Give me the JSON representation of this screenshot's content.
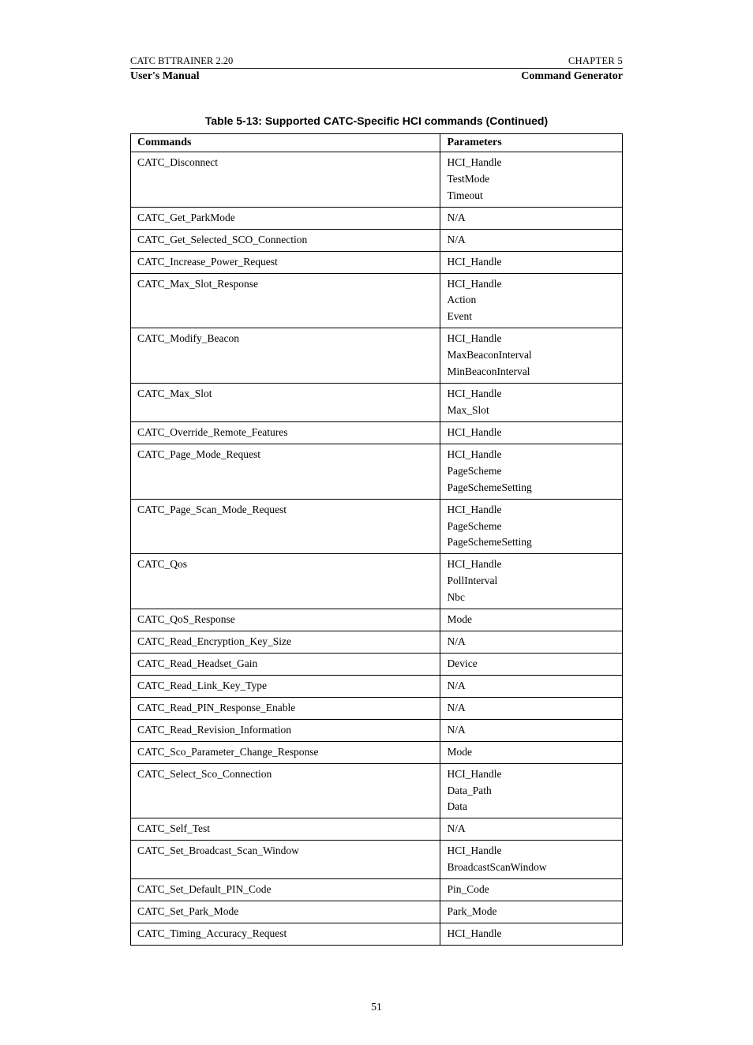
{
  "header": {
    "top_left_prefix": "CATC BT",
    "top_left_suffix": "T",
    "top_left_rest": "RAINER 2.20",
    "top_right_prefix": "C",
    "top_right_rest": "HAPTER 5",
    "bottom_left": "User's Manual",
    "bottom_right": "Command Generator"
  },
  "table_title": "Table 5-13: Supported CATC-Specific HCI commands (Continued)",
  "columns": {
    "c0": "Commands",
    "c1": "Parameters"
  },
  "rows": [
    {
      "cmd": "CATC_Disconnect",
      "params": [
        "HCI_Handle",
        "TestMode",
        "Timeout"
      ]
    },
    {
      "cmd": "CATC_Get_ParkMode",
      "params": [
        "N/A"
      ]
    },
    {
      "cmd": "CATC_Get_Selected_SCO_Connection",
      "params": [
        "N/A"
      ]
    },
    {
      "cmd": "CATC_Increase_Power_Request",
      "params": [
        "HCI_Handle"
      ]
    },
    {
      "cmd": "CATC_Max_Slot_Response",
      "params": [
        "HCI_Handle",
        "Action",
        "Event"
      ]
    },
    {
      "cmd": "CATC_Modify_Beacon",
      "params": [
        "HCI_Handle",
        "MaxBeaconInterval",
        "MinBeaconInterval"
      ]
    },
    {
      "cmd": "CATC_Max_Slot",
      "params": [
        "HCI_Handle",
        "Max_Slot"
      ]
    },
    {
      "cmd": "CATC_Override_Remote_Features",
      "params": [
        "HCI_Handle"
      ]
    },
    {
      "cmd": "CATC_Page_Mode_Request",
      "params": [
        "HCI_Handle",
        "PageScheme",
        "PageSchemeSetting"
      ]
    },
    {
      "cmd": "CATC_Page_Scan_Mode_Request",
      "params": [
        "HCI_Handle",
        "PageScheme",
        "PageSchemeSetting"
      ]
    },
    {
      "cmd": "CATC_Qos",
      "params": [
        "HCI_Handle",
        "PollInterval",
        "Nbc"
      ]
    },
    {
      "cmd": "CATC_QoS_Response",
      "params": [
        "Mode"
      ]
    },
    {
      "cmd": "CATC_Read_Encryption_Key_Size",
      "params": [
        "N/A"
      ]
    },
    {
      "cmd": "CATC_Read_Headset_Gain",
      "params": [
        "Device"
      ]
    },
    {
      "cmd": "CATC_Read_Link_Key_Type",
      "params": [
        "N/A"
      ]
    },
    {
      "cmd": "CATC_Read_PIN_Response_Enable",
      "params": [
        "N/A"
      ]
    },
    {
      "cmd": "CATC_Read_Revision_Information",
      "params": [
        "N/A"
      ]
    },
    {
      "cmd": "CATC_Sco_Parameter_Change_Response",
      "params": [
        "Mode"
      ]
    },
    {
      "cmd": "CATC_Select_Sco_Connection",
      "params": [
        "HCI_Handle",
        "Data_Path",
        "Data"
      ]
    },
    {
      "cmd": "CATC_Self_Test",
      "params": [
        "N/A"
      ]
    },
    {
      "cmd": "CATC_Set_Broadcast_Scan_Window",
      "params": [
        "HCI_Handle",
        "BroadcastScanWindow"
      ]
    },
    {
      "cmd": "CATC_Set_Default_PIN_Code",
      "params": [
        "Pin_Code"
      ]
    },
    {
      "cmd": "CATC_Set_Park_Mode",
      "params": [
        "Park_Mode"
      ]
    },
    {
      "cmd": "CATC_Timing_Accuracy_Request",
      "params": [
        "HCI_Handle"
      ]
    }
  ],
  "page_number": "51"
}
